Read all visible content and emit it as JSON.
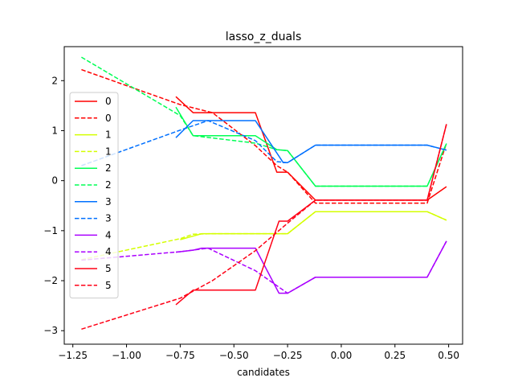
{
  "chart_data": {
    "type": "line",
    "title": "lasso_z_duals",
    "xlabel": "candidates",
    "ylabel": "",
    "xlim": [
      -1.29,
      0.565
    ],
    "ylim": [
      -3.27,
      2.68
    ],
    "grid": false,
    "legend_placement": "left",
    "xticks": [
      -1.25,
      -1.0,
      -0.75,
      -0.5,
      -0.25,
      0.0,
      0.25,
      0.5
    ],
    "xtick_labels": [
      "−1.25",
      "−1.00",
      "−0.75",
      "−0.50",
      "−0.25",
      "0.00",
      "0.25",
      "0.50"
    ],
    "yticks": [
      -3,
      -2,
      -1,
      0,
      1,
      2
    ],
    "ytick_labels": [
      "−3",
      "−2",
      "−1",
      "0",
      "1",
      "2"
    ],
    "series": [
      {
        "name": "0",
        "color": "#ff0000",
        "style": "solid",
        "x": [
          -0.77,
          -0.69,
          -0.4,
          -0.3,
          -0.25,
          -0.12,
          0.4,
          0.49
        ],
        "y": [
          1.68,
          1.36,
          1.36,
          0.17,
          0.17,
          -0.39,
          -0.39,
          -0.12
        ]
      },
      {
        "name": "0",
        "color": "#ff0000",
        "style": "dashed",
        "x": [
          -1.21,
          -0.75,
          -0.6,
          -0.4,
          -0.3,
          -0.25,
          -0.12,
          0.4,
          0.49
        ],
        "y": [
          2.22,
          1.52,
          1.36,
          0.7,
          0.3,
          0.17,
          -0.45,
          -0.45,
          0.75
        ]
      },
      {
        "name": "1",
        "color": "#d4ff00",
        "style": "solid",
        "x": [
          -0.75,
          -0.7,
          -0.65,
          -0.4,
          -0.25,
          -0.12,
          0.4,
          0.49
        ],
        "y": [
          -1.18,
          -1.12,
          -1.06,
          -1.06,
          -1.06,
          -0.62,
          -0.62,
          -0.79
        ]
      },
      {
        "name": "1",
        "color": "#d4ff00",
        "style": "dashed",
        "x": [
          -1.21,
          -0.75,
          -0.69,
          -0.6,
          -0.4,
          -0.3,
          -0.25,
          -0.12,
          0.4,
          0.49
        ],
        "y": [
          -1.58,
          -1.16,
          -1.07,
          -1.06,
          -1.06,
          -1.06,
          -1.06,
          -0.62,
          -0.62,
          -0.79
        ]
      },
      {
        "name": "2",
        "color": "#00ff55",
        "style": "solid",
        "x": [
          -0.77,
          -0.69,
          -0.4,
          -0.3,
          -0.25,
          -0.12,
          0.4,
          0.49
        ],
        "y": [
          1.47,
          0.9,
          0.9,
          0.62,
          0.6,
          -0.11,
          -0.11,
          0.74
        ]
      },
      {
        "name": "2",
        "color": "#00ff55",
        "style": "dashed",
        "x": [
          -1.21,
          -0.75,
          -0.69,
          -0.4,
          -0.3,
          -0.25,
          -0.12,
          0.4,
          0.49
        ],
        "y": [
          2.47,
          1.3,
          0.9,
          0.75,
          0.62,
          0.6,
          -0.11,
          -0.11,
          0.74
        ]
      },
      {
        "name": "3",
        "color": "#0070ff",
        "style": "solid",
        "x": [
          -0.77,
          -0.69,
          -0.4,
          -0.27,
          -0.25,
          -0.12,
          0.4,
          0.49
        ],
        "y": [
          0.86,
          1.2,
          1.2,
          0.36,
          0.36,
          0.71,
          0.71,
          0.61
        ]
      },
      {
        "name": "3",
        "color": "#0070ff",
        "style": "dashed",
        "x": [
          -1.21,
          -0.75,
          -0.62,
          -0.4,
          -0.3,
          -0.25,
          -0.12,
          0.4,
          0.49
        ],
        "y": [
          0.3,
          1.01,
          1.2,
          0.8,
          0.38,
          0.36,
          0.71,
          0.71,
          0.61
        ]
      },
      {
        "name": "4",
        "color": "#aa00ff",
        "style": "solid",
        "x": [
          -0.77,
          -0.69,
          -0.65,
          -0.4,
          -0.29,
          -0.25,
          -0.12,
          0.4,
          0.49
        ],
        "y": [
          -1.43,
          -1.39,
          -1.35,
          -1.35,
          -2.25,
          -2.25,
          -1.93,
          -1.93,
          -1.21
        ]
      },
      {
        "name": "4",
        "color": "#aa00ff",
        "style": "dashed",
        "x": [
          -1.21,
          -0.75,
          -0.62,
          -0.4,
          -0.25,
          -0.12,
          0.4,
          0.49
        ],
        "y": [
          -1.59,
          -1.42,
          -1.35,
          -1.8,
          -2.25,
          -1.93,
          -1.93,
          -1.21
        ]
      },
      {
        "name": "5",
        "color": "#ff0016",
        "style": "solid",
        "x": [
          -0.77,
          -0.69,
          -0.4,
          -0.29,
          -0.25,
          -0.12,
          0.4,
          0.49
        ],
        "y": [
          -2.48,
          -2.19,
          -2.19,
          -0.81,
          -0.81,
          -0.39,
          -0.39,
          1.13
        ]
      },
      {
        "name": "5",
        "color": "#ff0016",
        "style": "dashed",
        "x": [
          -1.21,
          -0.75,
          -0.6,
          -0.4,
          -0.25,
          -0.12,
          0.4,
          0.49
        ],
        "y": [
          -2.97,
          -2.35,
          -2.0,
          -1.4,
          -0.85,
          -0.39,
          -0.39,
          1.13
        ]
      }
    ]
  }
}
